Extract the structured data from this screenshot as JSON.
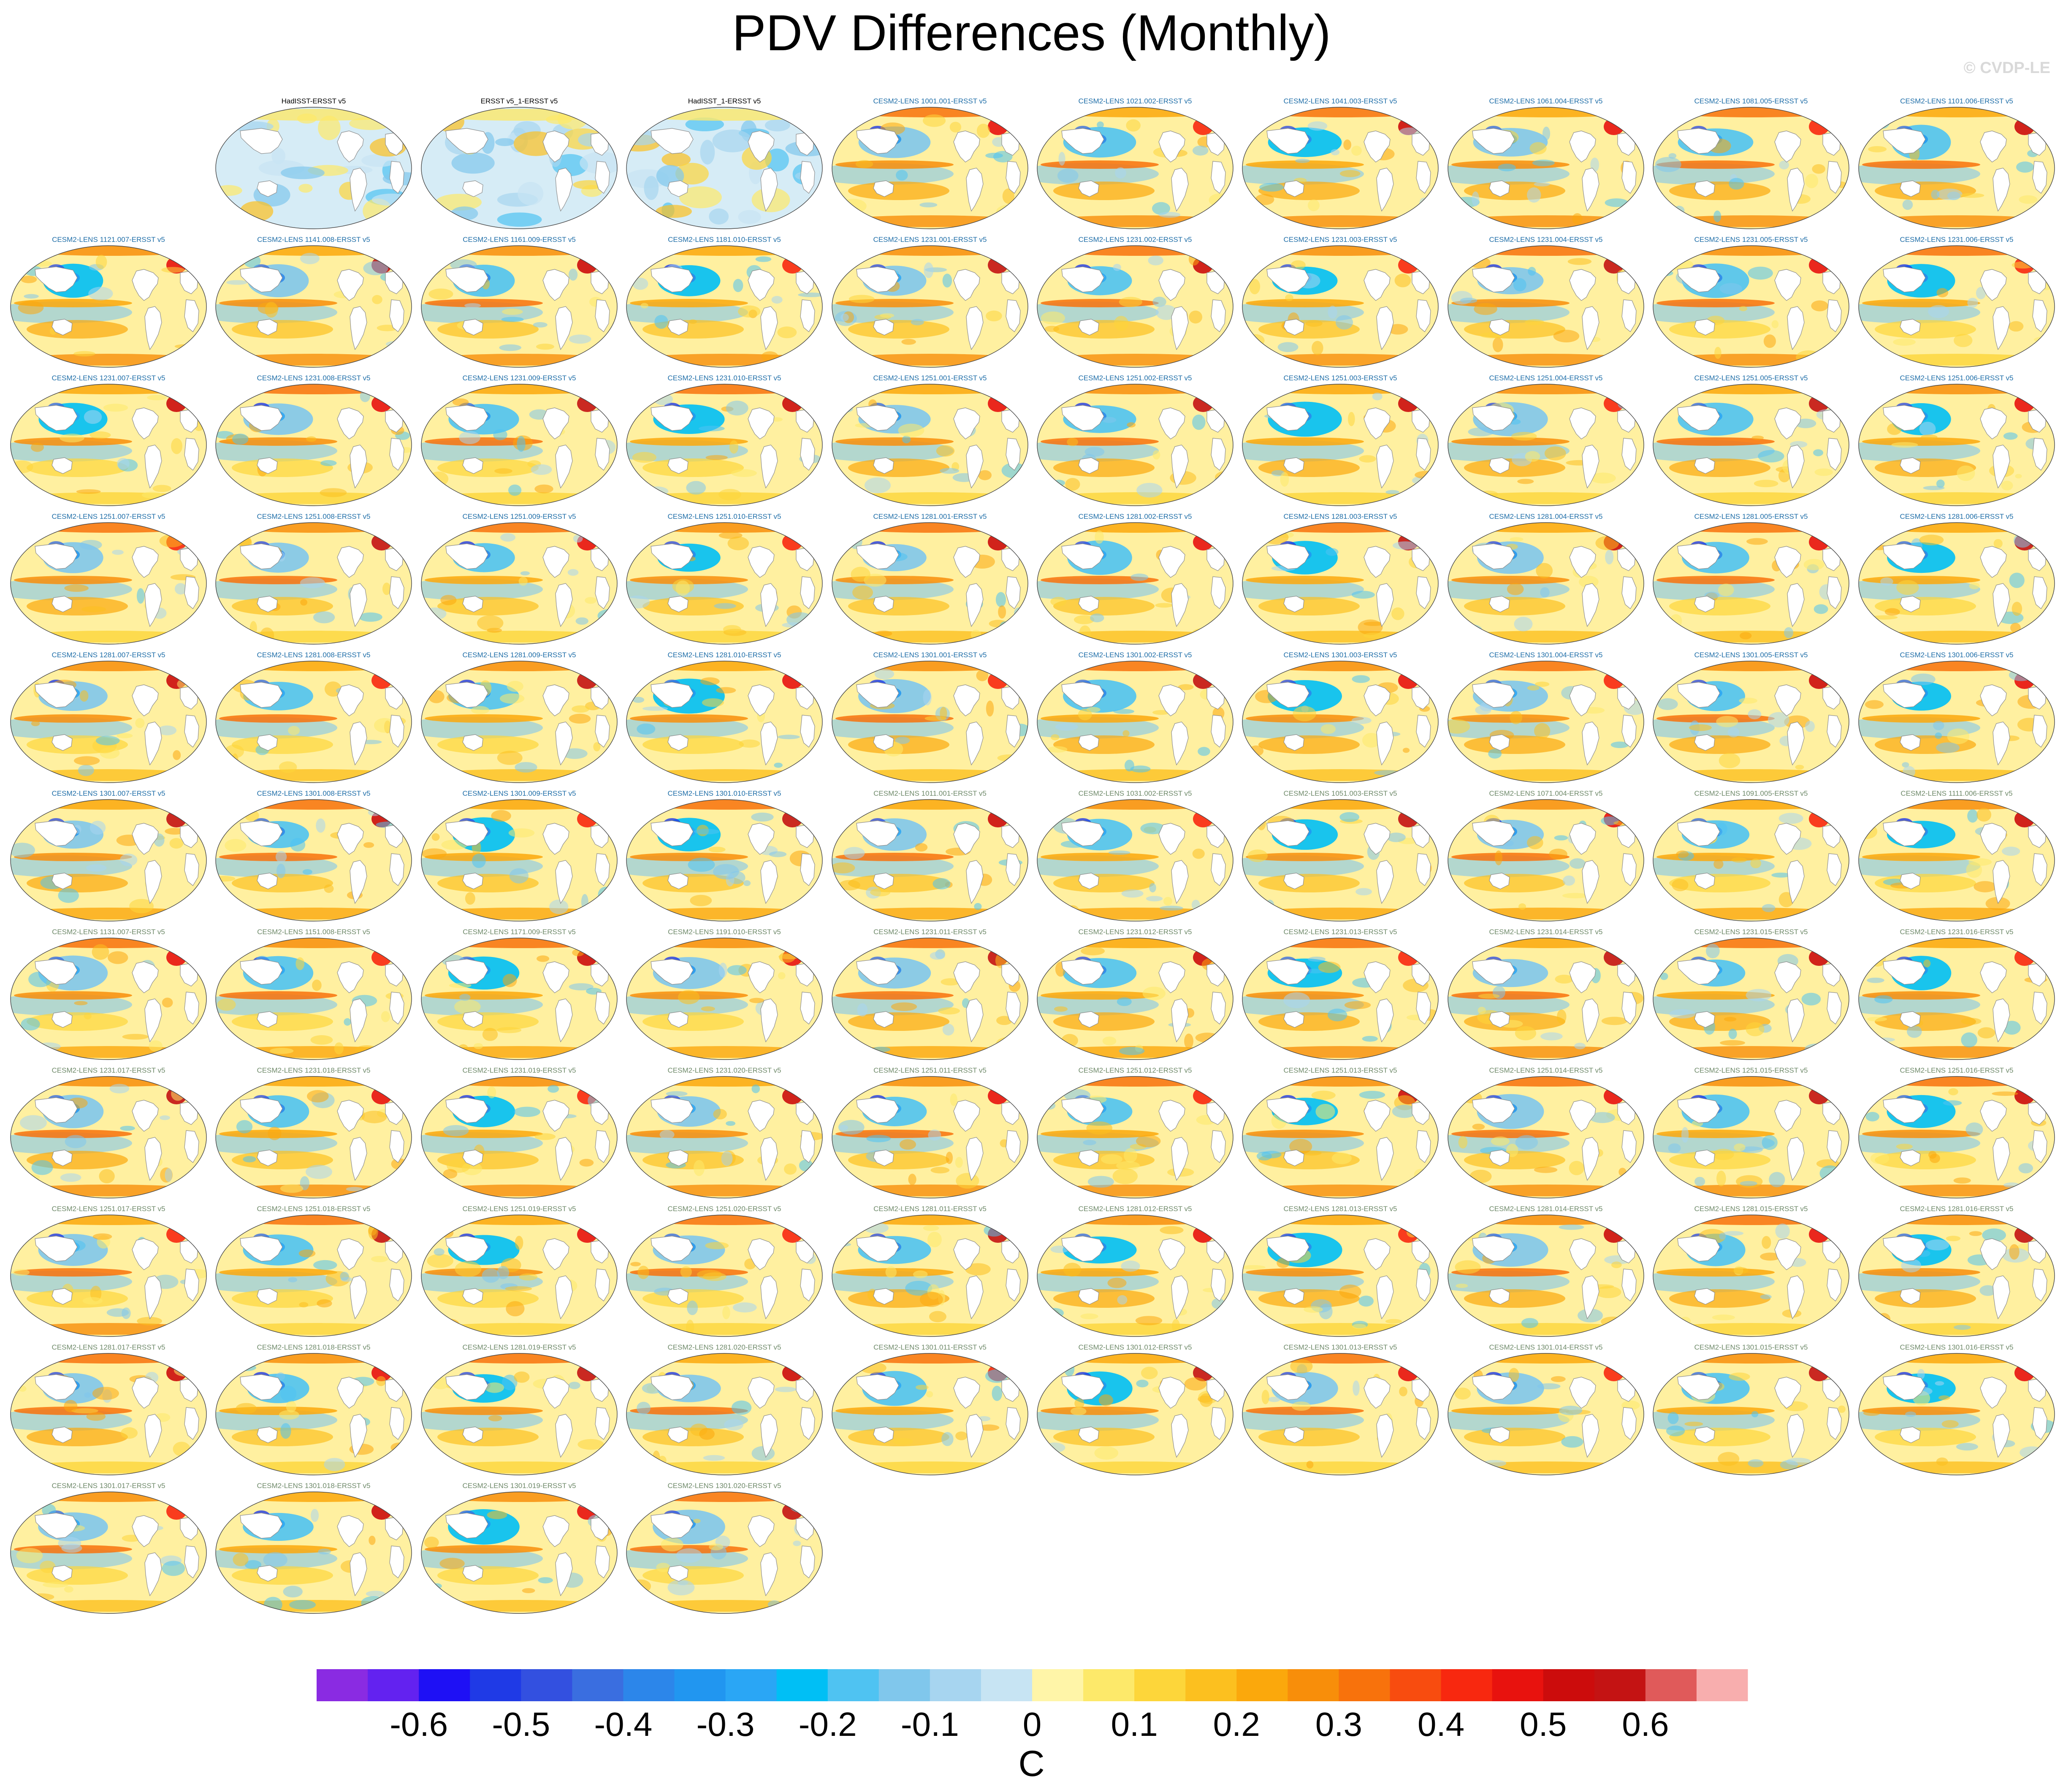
{
  "title": "PDV Differences (Monthly)",
  "watermark": "© CVDP-LE",
  "colors": {
    "obs_label": "#000000",
    "lens_label_a": "#1f6ea8",
    "lens_label_b": "#6f8a6a",
    "land_outline": "#8c8c8c",
    "ocean_base": "#fff3a8"
  },
  "panels": [
    {
      "label": "HadISST-ERSST v5",
      "kind": "obs"
    },
    {
      "label": "ERSST v5_1-ERSST v5",
      "kind": "obs"
    },
    {
      "label": "HadISST_1-ERSST v5",
      "kind": "obs"
    },
    {
      "label": "CESM2-LENS 1001.001-ERSST v5",
      "kind": "a"
    },
    {
      "label": "CESM2-LENS 1021.002-ERSST v5",
      "kind": "a"
    },
    {
      "label": "CESM2-LENS 1041.003-ERSST v5",
      "kind": "a"
    },
    {
      "label": "CESM2-LENS 1061.004-ERSST v5",
      "kind": "a"
    },
    {
      "label": "CESM2-LENS 1081.005-ERSST v5",
      "kind": "a"
    },
    {
      "label": "CESM2-LENS 1101.006-ERSST v5",
      "kind": "a"
    },
    {
      "label": "CESM2-LENS 1121.007-ERSST v5",
      "kind": "a"
    },
    {
      "label": "CESM2-LENS 1141.008-ERSST v5",
      "kind": "a"
    },
    {
      "label": "CESM2-LENS 1161.009-ERSST v5",
      "kind": "a"
    },
    {
      "label": "CESM2-LENS 1181.010-ERSST v5",
      "kind": "a"
    },
    {
      "label": "CESM2-LENS 1231.001-ERSST v5",
      "kind": "a"
    },
    {
      "label": "CESM2-LENS 1231.002-ERSST v5",
      "kind": "a"
    },
    {
      "label": "CESM2-LENS 1231.003-ERSST v5",
      "kind": "a"
    },
    {
      "label": "CESM2-LENS 1231.004-ERSST v5",
      "kind": "a"
    },
    {
      "label": "CESM2-LENS 1231.005-ERSST v5",
      "kind": "a"
    },
    {
      "label": "CESM2-LENS 1231.006-ERSST v5",
      "kind": "a"
    },
    {
      "label": "CESM2-LENS 1231.007-ERSST v5",
      "kind": "a"
    },
    {
      "label": "CESM2-LENS 1231.008-ERSST v5",
      "kind": "a"
    },
    {
      "label": "CESM2-LENS 1231.009-ERSST v5",
      "kind": "a"
    },
    {
      "label": "CESM2-LENS 1231.010-ERSST v5",
      "kind": "a"
    },
    {
      "label": "CESM2-LENS 1251.001-ERSST v5",
      "kind": "a"
    },
    {
      "label": "CESM2-LENS 1251.002-ERSST v5",
      "kind": "a"
    },
    {
      "label": "CESM2-LENS 1251.003-ERSST v5",
      "kind": "a"
    },
    {
      "label": "CESM2-LENS 1251.004-ERSST v5",
      "kind": "a"
    },
    {
      "label": "CESM2-LENS 1251.005-ERSST v5",
      "kind": "a"
    },
    {
      "label": "CESM2-LENS 1251.006-ERSST v5",
      "kind": "a"
    },
    {
      "label": "CESM2-LENS 1251.007-ERSST v5",
      "kind": "a"
    },
    {
      "label": "CESM2-LENS 1251.008-ERSST v5",
      "kind": "a"
    },
    {
      "label": "CESM2-LENS 1251.009-ERSST v5",
      "kind": "a"
    },
    {
      "label": "CESM2-LENS 1251.010-ERSST v5",
      "kind": "a"
    },
    {
      "label": "CESM2-LENS 1281.001-ERSST v5",
      "kind": "a"
    },
    {
      "label": "CESM2-LENS 1281.002-ERSST v5",
      "kind": "a"
    },
    {
      "label": "CESM2-LENS 1281.003-ERSST v5",
      "kind": "a"
    },
    {
      "label": "CESM2-LENS 1281.004-ERSST v5",
      "kind": "a"
    },
    {
      "label": "CESM2-LENS 1281.005-ERSST v5",
      "kind": "a"
    },
    {
      "label": "CESM2-LENS 1281.006-ERSST v5",
      "kind": "a"
    },
    {
      "label": "CESM2-LENS 1281.007-ERSST v5",
      "kind": "a"
    },
    {
      "label": "CESM2-LENS 1281.008-ERSST v5",
      "kind": "a"
    },
    {
      "label": "CESM2-LENS 1281.009-ERSST v5",
      "kind": "a"
    },
    {
      "label": "CESM2-LENS 1281.010-ERSST v5",
      "kind": "a"
    },
    {
      "label": "CESM2-LENS 1301.001-ERSST v5",
      "kind": "a"
    },
    {
      "label": "CESM2-LENS 1301.002-ERSST v5",
      "kind": "a"
    },
    {
      "label": "CESM2-LENS 1301.003-ERSST v5",
      "kind": "a"
    },
    {
      "label": "CESM2-LENS 1301.004-ERSST v5",
      "kind": "a"
    },
    {
      "label": "CESM2-LENS 1301.005-ERSST v5",
      "kind": "a"
    },
    {
      "label": "CESM2-LENS 1301.006-ERSST v5",
      "kind": "a"
    },
    {
      "label": "CESM2-LENS 1301.007-ERSST v5",
      "kind": "a"
    },
    {
      "label": "CESM2-LENS 1301.008-ERSST v5",
      "kind": "a"
    },
    {
      "label": "CESM2-LENS 1301.009-ERSST v5",
      "kind": "a"
    },
    {
      "label": "CESM2-LENS 1301.010-ERSST v5",
      "kind": "a"
    },
    {
      "label": "CESM2-LENS 1011.001-ERSST v5",
      "kind": "b"
    },
    {
      "label": "CESM2-LENS 1031.002-ERSST v5",
      "kind": "b"
    },
    {
      "label": "CESM2-LENS 1051.003-ERSST v5",
      "kind": "b"
    },
    {
      "label": "CESM2-LENS 1071.004-ERSST v5",
      "kind": "b"
    },
    {
      "label": "CESM2-LENS 1091.005-ERSST v5",
      "kind": "b"
    },
    {
      "label": "CESM2-LENS 1111.006-ERSST v5",
      "kind": "b"
    },
    {
      "label": "CESM2-LENS 1131.007-ERSST v5",
      "kind": "b"
    },
    {
      "label": "CESM2-LENS 1151.008-ERSST v5",
      "kind": "b"
    },
    {
      "label": "CESM2-LENS 1171.009-ERSST v5",
      "kind": "b"
    },
    {
      "label": "CESM2-LENS 1191.010-ERSST v5",
      "kind": "b"
    },
    {
      "label": "CESM2-LENS 1231.011-ERSST v5",
      "kind": "b"
    },
    {
      "label": "CESM2-LENS 1231.012-ERSST v5",
      "kind": "b"
    },
    {
      "label": "CESM2-LENS 1231.013-ERSST v5",
      "kind": "b"
    },
    {
      "label": "CESM2-LENS 1231.014-ERSST v5",
      "kind": "b"
    },
    {
      "label": "CESM2-LENS 1231.015-ERSST v5",
      "kind": "b"
    },
    {
      "label": "CESM2-LENS 1231.016-ERSST v5",
      "kind": "b"
    },
    {
      "label": "CESM2-LENS 1231.017-ERSST v5",
      "kind": "b"
    },
    {
      "label": "CESM2-LENS 1231.018-ERSST v5",
      "kind": "b"
    },
    {
      "label": "CESM2-LENS 1231.019-ERSST v5",
      "kind": "b"
    },
    {
      "label": "CESM2-LENS 1231.020-ERSST v5",
      "kind": "b"
    },
    {
      "label": "CESM2-LENS 1251.011-ERSST v5",
      "kind": "b"
    },
    {
      "label": "CESM2-LENS 1251.012-ERSST v5",
      "kind": "b"
    },
    {
      "label": "CESM2-LENS 1251.013-ERSST v5",
      "kind": "b"
    },
    {
      "label": "CESM2-LENS 1251.014-ERSST v5",
      "kind": "b"
    },
    {
      "label": "CESM2-LENS 1251.015-ERSST v5",
      "kind": "b"
    },
    {
      "label": "CESM2-LENS 1251.016-ERSST v5",
      "kind": "b"
    },
    {
      "label": "CESM2-LENS 1251.017-ERSST v5",
      "kind": "b"
    },
    {
      "label": "CESM2-LENS 1251.018-ERSST v5",
      "kind": "b"
    },
    {
      "label": "CESM2-LENS 1251.019-ERSST v5",
      "kind": "b"
    },
    {
      "label": "CESM2-LENS 1251.020-ERSST v5",
      "kind": "b"
    },
    {
      "label": "CESM2-LENS 1281.011-ERSST v5",
      "kind": "b"
    },
    {
      "label": "CESM2-LENS 1281.012-ERSST v5",
      "kind": "b"
    },
    {
      "label": "CESM2-LENS 1281.013-ERSST v5",
      "kind": "b"
    },
    {
      "label": "CESM2-LENS 1281.014-ERSST v5",
      "kind": "b"
    },
    {
      "label": "CESM2-LENS 1281.015-ERSST v5",
      "kind": "b"
    },
    {
      "label": "CESM2-LENS 1281.016-ERSST v5",
      "kind": "b"
    },
    {
      "label": "CESM2-LENS 1281.017-ERSST v5",
      "kind": "b"
    },
    {
      "label": "CESM2-LENS 1281.018-ERSST v5",
      "kind": "b"
    },
    {
      "label": "CESM2-LENS 1281.019-ERSST v5",
      "kind": "b"
    },
    {
      "label": "CESM2-LENS 1281.020-ERSST v5",
      "kind": "b"
    },
    {
      "label": "CESM2-LENS 1301.011-ERSST v5",
      "kind": "b"
    },
    {
      "label": "CESM2-LENS 1301.012-ERSST v5",
      "kind": "b"
    },
    {
      "label": "CESM2-LENS 1301.013-ERSST v5",
      "kind": "b"
    },
    {
      "label": "CESM2-LENS 1301.014-ERSST v5",
      "kind": "b"
    },
    {
      "label": "CESM2-LENS 1301.015-ERSST v5",
      "kind": "b"
    },
    {
      "label": "CESM2-LENS 1301.016-ERSST v5",
      "kind": "b"
    },
    {
      "label": "CESM2-LENS 1301.017-ERSST v5",
      "kind": "b"
    },
    {
      "label": "CESM2-LENS 1301.018-ERSST v5",
      "kind": "b"
    },
    {
      "label": "CESM2-LENS 1301.019-ERSST v5",
      "kind": "b"
    },
    {
      "label": "CESM2-LENS 1301.020-ERSST v5",
      "kind": "b"
    }
  ],
  "chart_data": {
    "type": "heatmap",
    "title": "PDV Differences (Monthly)",
    "panel_count": 103,
    "colorbar": {
      "units": "C",
      "levels": [
        -0.65,
        -0.6,
        -0.55,
        -0.5,
        -0.45,
        -0.4,
        -0.35,
        -0.3,
        -0.25,
        -0.2,
        -0.15,
        -0.1,
        -0.05,
        0,
        0.05,
        0.1,
        0.15,
        0.2,
        0.25,
        0.3,
        0.35,
        0.4,
        0.45,
        0.5,
        0.55,
        0.6,
        0.65
      ],
      "tick_labels": [
        "-0.6",
        "-0.5",
        "-0.4",
        "-0.3",
        "-0.2",
        "-0.1",
        "0",
        "0.1",
        "0.2",
        "0.3",
        "0.4",
        "0.5",
        "0.6"
      ],
      "tick_values": [
        -0.6,
        -0.5,
        -0.4,
        -0.3,
        -0.2,
        -0.1,
        0,
        0.1,
        0.2,
        0.3,
        0.4,
        0.5,
        0.6
      ],
      "colors": [
        "#8a2be2",
        "#6322f0",
        "#1e10f5",
        "#1f3ae6",
        "#3350e0",
        "#3a6ee0",
        "#2c86ea",
        "#2196f0",
        "#2aa6f5",
        "#00bff5",
        "#4fc3f2",
        "#80c7ec",
        "#a7d5f0",
        "#c7e4f3",
        "#fff5a8",
        "#fde96a",
        "#fdd63a",
        "#fcc01f",
        "#fba80c",
        "#f88e0a",
        "#f8720c",
        "#f84c0f",
        "#f8280f",
        "#e8120e",
        "#cc0c0c",
        "#c41313",
        "#e05a5a",
        "#f8aeae"
      ]
    }
  }
}
